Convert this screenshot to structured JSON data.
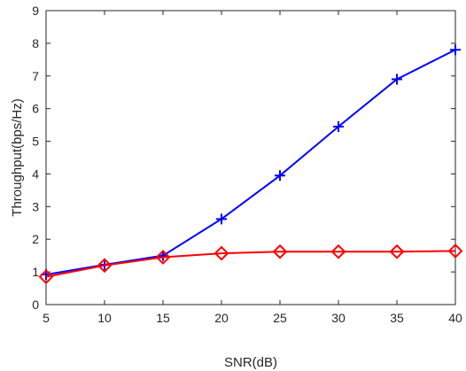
{
  "chart_data": {
    "type": "line",
    "title": "",
    "xlabel": "SNR(dB)",
    "ylabel": "Throughput(bps/Hz)",
    "xlim": [
      5,
      40
    ],
    "ylim": [
      0,
      9
    ],
    "xticks": [
      5,
      10,
      15,
      20,
      25,
      30,
      35,
      40
    ],
    "yticks": [
      0,
      1,
      2,
      3,
      4,
      5,
      6,
      7,
      8,
      9
    ],
    "grid": false,
    "x": [
      5,
      10,
      15,
      20,
      25,
      30,
      35,
      40
    ],
    "series": [
      {
        "values": [
          0.92,
          1.22,
          1.5,
          2.62,
          3.95,
          5.45,
          6.9,
          7.8
        ],
        "color": "#0000ff",
        "marker": "plus"
      },
      {
        "values": [
          0.85,
          1.2,
          1.45,
          1.57,
          1.62,
          1.62,
          1.62,
          1.64
        ],
        "color": "#ff0000",
        "marker": "diamond"
      }
    ]
  }
}
